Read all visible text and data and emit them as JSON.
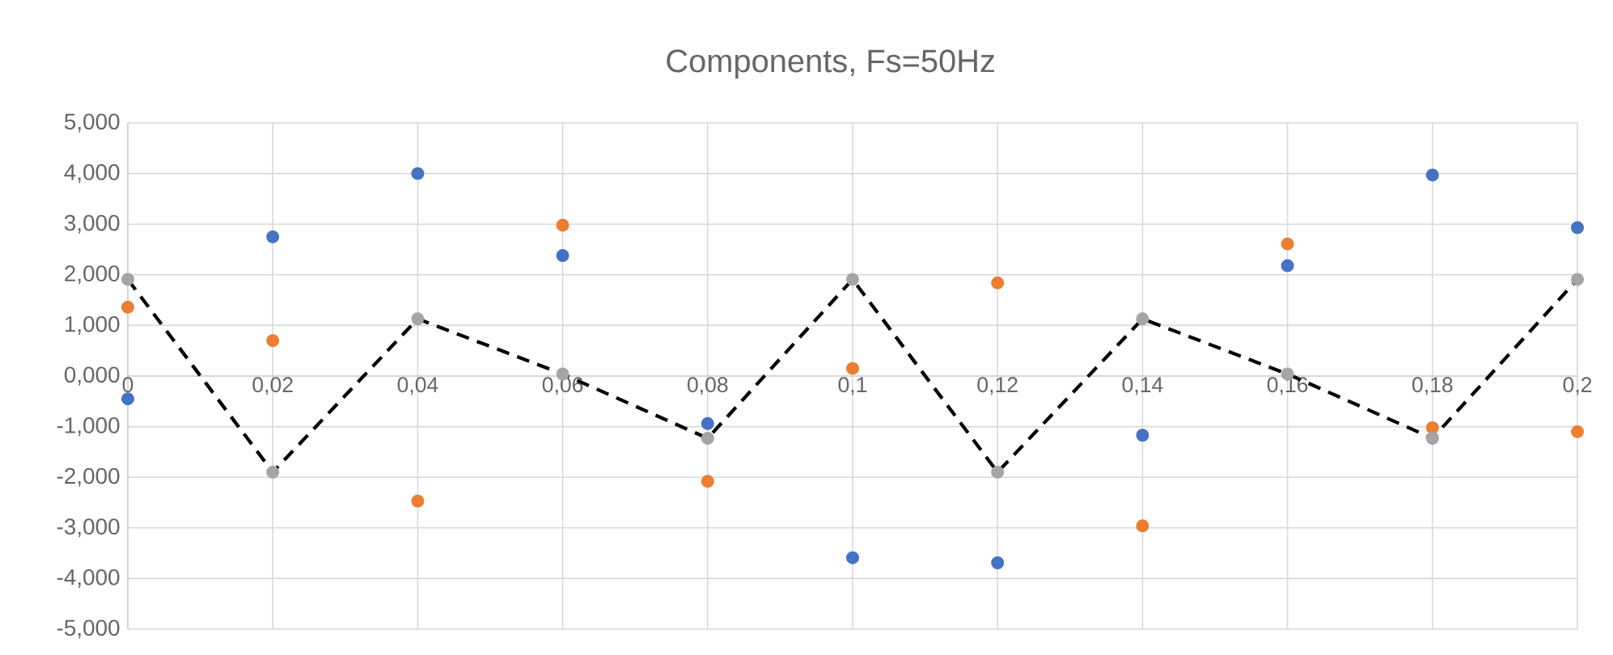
{
  "chart_data": {
    "type": "scatter",
    "title": "Components, Fs=50Hz",
    "x": [
      0,
      0.02,
      0.04,
      0.06,
      0.08,
      0.1,
      0.12,
      0.14,
      0.16,
      0.18,
      0.2
    ],
    "series": [
      {
        "color": "#4472c4",
        "values": [
          -0.45,
          2.75,
          4.0,
          2.38,
          -0.94,
          -3.59,
          -3.69,
          -1.17,
          2.18,
          3.97,
          2.93
        ]
      },
      {
        "color": "#ed7d31",
        "values": [
          1.36,
          0.7,
          -2.47,
          2.98,
          -2.08,
          0.15,
          1.84,
          -2.96,
          2.61,
          -1.02,
          -1.1
        ]
      },
      {
        "type": "line",
        "color": "#000000",
        "line_style": "dashed",
        "marker": "none",
        "values": [
          1.91,
          -1.9,
          1.13,
          0.04,
          -1.23,
          1.91,
          -1.9,
          1.13,
          0.04,
          -1.23,
          1.91
        ]
      },
      {
        "color": "#a5a5a5",
        "values": [
          1.91,
          -1.9,
          1.13,
          0.04,
          -1.23,
          1.91,
          -1.9,
          1.13,
          0.04,
          -1.23,
          1.91
        ]
      }
    ],
    "marker": "circle",
    "grid": true,
    "xlim": [
      0,
      0.2
    ],
    "xticks": [
      0,
      {
        "value": 0.02,
        "label": "0,02"
      },
      {
        "value": 0.04,
        "label": "0,04"
      },
      {
        "value": 0.06,
        "label": "0,06"
      },
      {
        "value": 0.08,
        "label": "0,08"
      },
      {
        "value": 0.1,
        "label": "0,1"
      },
      {
        "value": 0.12,
        "label": "0,12"
      },
      {
        "value": 0.14,
        "label": "0,14"
      },
      {
        "value": 0.16,
        "label": "0,16"
      },
      {
        "value": 0.18,
        "label": "0,18"
      },
      {
        "value": 0.2,
        "label": "0,2"
      }
    ],
    "ylim": [
      -5,
      5
    ],
    "yticks": [
      {
        "value": -5,
        "label": "-5,000"
      },
      {
        "value": -4,
        "label": "-4,000"
      },
      {
        "value": -3,
        "label": "-3,000"
      },
      {
        "value": -2,
        "label": "-2,000"
      },
      {
        "value": -1,
        "label": "-1,000"
      },
      {
        "value": 0,
        "label": "0,000"
      },
      {
        "value": 1,
        "label": "1,000"
      },
      {
        "value": 2,
        "label": "2,000"
      },
      {
        "value": 3,
        "label": "3,000"
      },
      {
        "value": 4,
        "label": "4,000"
      },
      {
        "value": 5,
        "label": "5,000"
      }
    ]
  }
}
